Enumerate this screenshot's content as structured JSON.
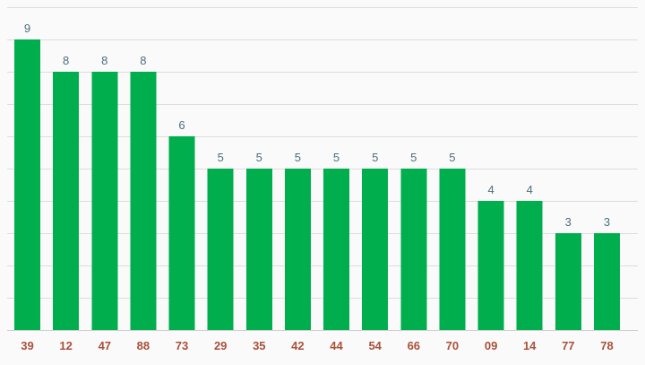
{
  "chart_data": {
    "type": "bar",
    "categories": [
      "39",
      "12",
      "47",
      "88",
      "73",
      "29",
      "35",
      "42",
      "44",
      "54",
      "66",
      "70",
      "09",
      "14",
      "77",
      "78"
    ],
    "values": [
      9,
      8,
      8,
      8,
      6,
      5,
      5,
      5,
      5,
      5,
      5,
      5,
      4,
      4,
      3,
      3
    ],
    "title": "",
    "xlabel": "",
    "ylabel": "",
    "ylim": [
      0,
      10
    ],
    "grid": true,
    "data_labels": true,
    "colors": {
      "bar": "#00ae4d",
      "value_label": "#4e6e82",
      "category_label": "#a8513a",
      "grid": "#dddddd",
      "background": "#fafafa"
    }
  }
}
